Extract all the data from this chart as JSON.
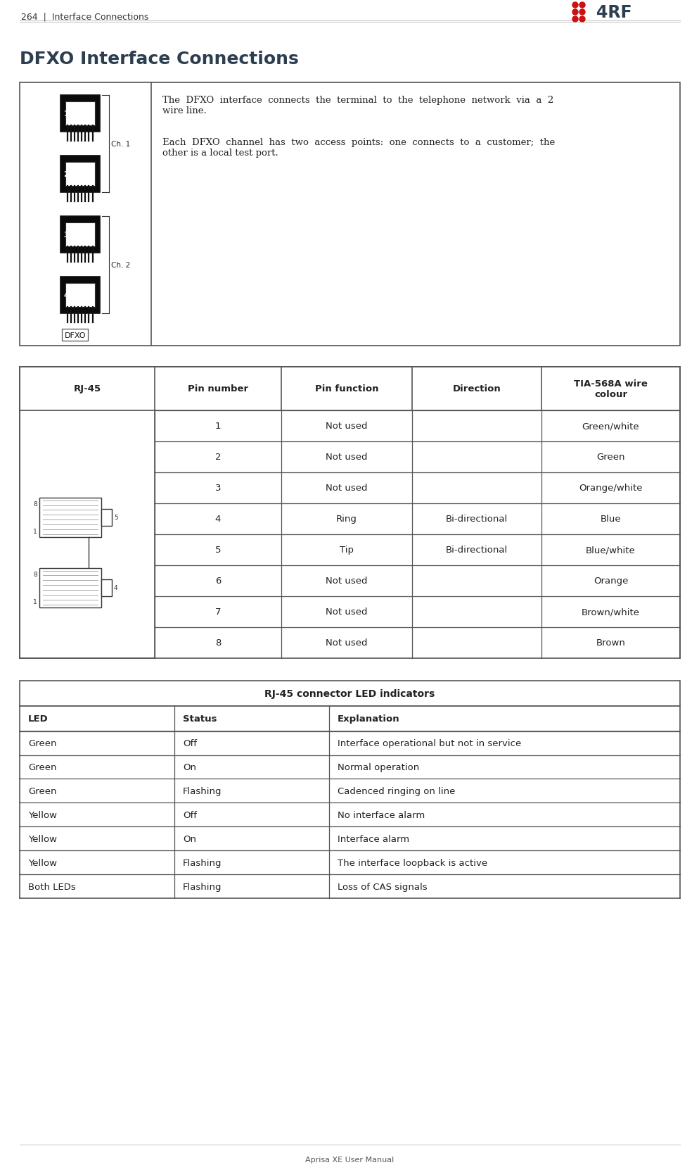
{
  "page_title": "264  |  Interface Connections",
  "logo_text": "4RF",
  "section_title": "DFXO Interface Connections",
  "description_text_1": "The  DFXO  interface  connects  the  terminal  to  the  telephone  network  via  a  2\nwire line.",
  "description_text_2": "Each  DFXO  channel  has  two  access  points:  one  connects  to  a  customer;  the\nother is a local test port.",
  "pin_table_header": [
    "RJ-45",
    "Pin number",
    "Pin function",
    "Direction",
    "TIA-568A wire\ncolour"
  ],
  "pin_table_rows": [
    [
      "1",
      "Not used",
      "",
      "Green/white"
    ],
    [
      "2",
      "Not used",
      "",
      "Green"
    ],
    [
      "3",
      "Not used",
      "",
      "Orange/white"
    ],
    [
      "4",
      "Ring",
      "Bi-directional",
      "Blue"
    ],
    [
      "5",
      "Tip",
      "Bi-directional",
      "Blue/white"
    ],
    [
      "6",
      "Not used",
      "",
      "Orange"
    ],
    [
      "7",
      "Not used",
      "",
      "Brown/white"
    ],
    [
      "8",
      "Not used",
      "",
      "Brown"
    ]
  ],
  "led_table_title": "RJ-45 connector LED indicators",
  "led_table_header": [
    "LED",
    "Status",
    "Explanation"
  ],
  "led_table_rows": [
    [
      "Green",
      "Off",
      "Interface operational but not in service"
    ],
    [
      "Green",
      "On",
      "Normal operation"
    ],
    [
      "Green",
      "Flashing",
      "Cadenced ringing on line"
    ],
    [
      "Yellow",
      "Off",
      "No interface alarm"
    ],
    [
      "Yellow",
      "On",
      "Interface alarm"
    ],
    [
      "Yellow",
      "Flashing",
      "The interface loopback is active"
    ],
    [
      "Both LEDs",
      "Flashing",
      "Loss of CAS signals"
    ]
  ],
  "footer_text": "Aprisa XE User Manual",
  "bg_color": "#ffffff",
  "table_border_color": "#555555",
  "text_color": "#222222",
  "title_color": "#2d3e50",
  "font_size_page_title": 9,
  "font_size_section_title": 18,
  "font_size_body": 9.5,
  "font_size_table": 9.5,
  "font_size_footer": 8
}
